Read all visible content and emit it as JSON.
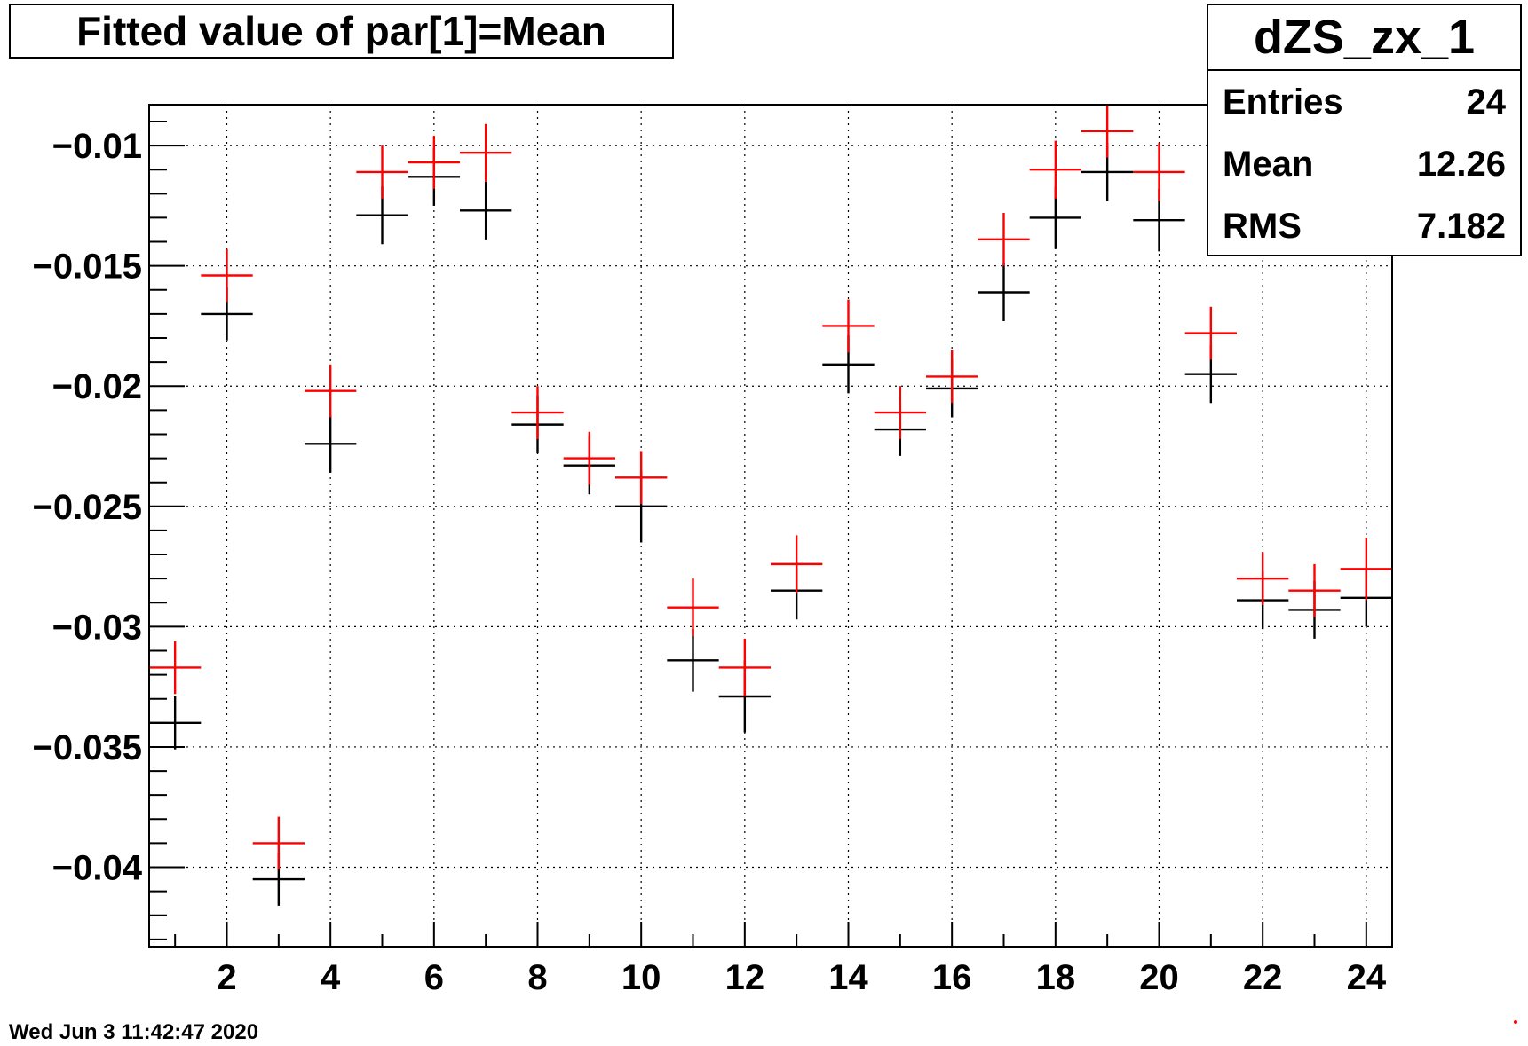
{
  "title": "Fitted value of par[1]=Mean",
  "stats": {
    "name": "dZS_zx_1",
    "rows": [
      {
        "label": "Entries",
        "value": "24"
      },
      {
        "label": "Mean",
        "value": "12.26"
      },
      {
        "label": "RMS",
        "value": "7.182"
      }
    ]
  },
  "timestamp": "Wed Jun  3 11:42:47 2020",
  "colors": {
    "series_black": "#000000",
    "series_red": "#ff0000",
    "grid": "#000000"
  },
  "chart_data": {
    "type": "scatter",
    "title": "Fitted value of par[1]=Mean",
    "xlabel": "",
    "ylabel": "",
    "xlim": [
      0.5,
      24.5
    ],
    "ylim": [
      -0.0433,
      -0.0083
    ],
    "grid": true,
    "x_ticks": [
      2,
      4,
      6,
      8,
      10,
      12,
      14,
      16,
      18,
      20,
      22,
      24
    ],
    "x_tick_labels": [
      "2",
      "4",
      "6",
      "8",
      "10",
      "12",
      "14",
      "16",
      "18",
      "20",
      "22",
      "24"
    ],
    "y_ticks": [
      -0.01,
      -0.015,
      -0.02,
      -0.025,
      -0.03,
      -0.035,
      -0.04
    ],
    "y_tick_labels": [
      "−0.01",
      "−0.015",
      "−0.02",
      "−0.025",
      "−0.03",
      "−0.035",
      "−0.04"
    ],
    "x": [
      1,
      2,
      3,
      4,
      5,
      6,
      7,
      8,
      9,
      10,
      11,
      12,
      13,
      14,
      15,
      16,
      17,
      18,
      19,
      20,
      21,
      22,
      23,
      24
    ],
    "x_half_width": 0.5,
    "series": [
      {
        "color": "#000000",
        "values": [
          -0.034,
          -0.017,
          -0.0405,
          -0.0224,
          -0.0129,
          -0.0113,
          -0.0127,
          -0.0216,
          -0.0233,
          -0.025,
          -0.0314,
          -0.0329,
          -0.0285,
          -0.0191,
          -0.0218,
          -0.0201,
          -0.0161,
          -0.013,
          -0.0111,
          -0.0131,
          -0.0195,
          -0.0289,
          -0.0293,
          -0.0288
        ],
        "errors": [
          0.0011,
          0.0011,
          0.0011,
          0.0012,
          0.0012,
          0.0012,
          0.0012,
          0.0012,
          0.0012,
          0.0015,
          0.0013,
          0.0015,
          0.0012,
          0.0012,
          0.0011,
          0.0012,
          0.0012,
          0.0013,
          0.0012,
          0.0013,
          0.0012,
          0.0012,
          0.0012,
          0.0012
        ]
      },
      {
        "color": "#ff0000",
        "values": [
          -0.0317,
          -0.0154,
          -0.039,
          -0.0202,
          -0.0111,
          -0.0107,
          -0.0103,
          -0.0211,
          -0.023,
          -0.0238,
          -0.0292,
          -0.0317,
          -0.0274,
          -0.0175,
          -0.0211,
          -0.0196,
          -0.0139,
          -0.011,
          -0.0094,
          -0.0111,
          -0.0178,
          -0.028,
          -0.0285,
          -0.0276
        ],
        "errors": [
          0.0011,
          0.0011,
          0.0011,
          0.0011,
          0.0011,
          0.0011,
          0.0012,
          0.0011,
          0.0011,
          0.0011,
          0.0012,
          0.0012,
          0.0012,
          0.0011,
          0.0011,
          0.0011,
          0.0011,
          0.0012,
          0.0011,
          0.0012,
          0.0011,
          0.0011,
          0.0011,
          0.0013
        ]
      }
    ]
  }
}
